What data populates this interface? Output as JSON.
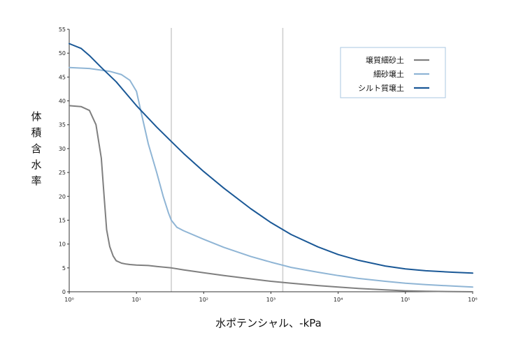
{
  "chart_data": {
    "type": "line",
    "xlabel": "水ポテンシャル、-kPa",
    "ylabel": "体積含水率",
    "x_scale": "log",
    "xlim": [
      1,
      1000000
    ],
    "ylim": [
      0,
      55
    ],
    "x_ticks": [
      1,
      10,
      100,
      1000,
      10000,
      100000,
      1000000
    ],
    "x_tick_labels": [
      "10⁰",
      "10¹",
      "10²",
      "10³",
      "10⁴",
      "10⁵",
      "10⁶"
    ],
    "y_ticks": [
      0,
      5,
      10,
      15,
      20,
      25,
      30,
      35,
      40,
      45,
      50,
      55
    ],
    "y_tick_labels": [
      "0",
      "5",
      "10",
      "15",
      "20",
      "25",
      "30",
      "35",
      "40",
      "45",
      "50",
      "55"
    ],
    "reference_lines_x": [
      33,
      1500
    ],
    "legend_position": "top-right",
    "series": [
      {
        "name": "壌質細砂土",
        "color": "#7f7f7f",
        "x": [
          1,
          1.5,
          2,
          2.5,
          3,
          3.3,
          3.6,
          4,
          4.5,
          5,
          6,
          7,
          8,
          10,
          15,
          20,
          33,
          50,
          100,
          200,
          500,
          1000,
          2000,
          5000,
          10000,
          20000,
          50000,
          100000,
          200000,
          500000,
          1000000
        ],
        "y": [
          39,
          38.8,
          38,
          35,
          28,
          20,
          13,
          9.5,
          7.5,
          6.5,
          6,
          5.8,
          5.7,
          5.6,
          5.5,
          5.3,
          5,
          4.6,
          4.0,
          3.4,
          2.7,
          2.2,
          1.8,
          1.3,
          1.0,
          0.7,
          0.4,
          0.2,
          0.1,
          0.05,
          0
        ]
      },
      {
        "name": "細砂壌土",
        "color": "#8fb5d5",
        "x": [
          1,
          2,
          4,
          6,
          8,
          10,
          12,
          15,
          20,
          25,
          30,
          33,
          40,
          50,
          100,
          200,
          500,
          1000,
          2000,
          5000,
          10000,
          20000,
          50000,
          100000,
          200000,
          500000,
          1000000
        ],
        "y": [
          47,
          46.8,
          46.2,
          45.5,
          44.3,
          42,
          37,
          31,
          25,
          20,
          16.5,
          15,
          13.5,
          12.8,
          11,
          9.3,
          7.4,
          6.2,
          5.1,
          4.1,
          3.4,
          2.8,
          2.2,
          1.8,
          1.5,
          1.2,
          1.0
        ]
      },
      {
        "name": "シルト質壌土",
        "color": "#1a5896",
        "x": [
          1,
          1.5,
          2,
          3,
          5,
          10,
          20,
          33,
          50,
          100,
          200,
          500,
          1000,
          2000,
          5000,
          10000,
          20000,
          50000,
          100000,
          200000,
          500000,
          1000000
        ],
        "y": [
          52,
          51,
          49.5,
          47,
          44,
          39,
          34.5,
          31.5,
          29,
          25.2,
          21.7,
          17.4,
          14.5,
          12,
          9.4,
          7.8,
          6.6,
          5.4,
          4.8,
          4.4,
          4.1,
          3.9
        ]
      }
    ]
  }
}
